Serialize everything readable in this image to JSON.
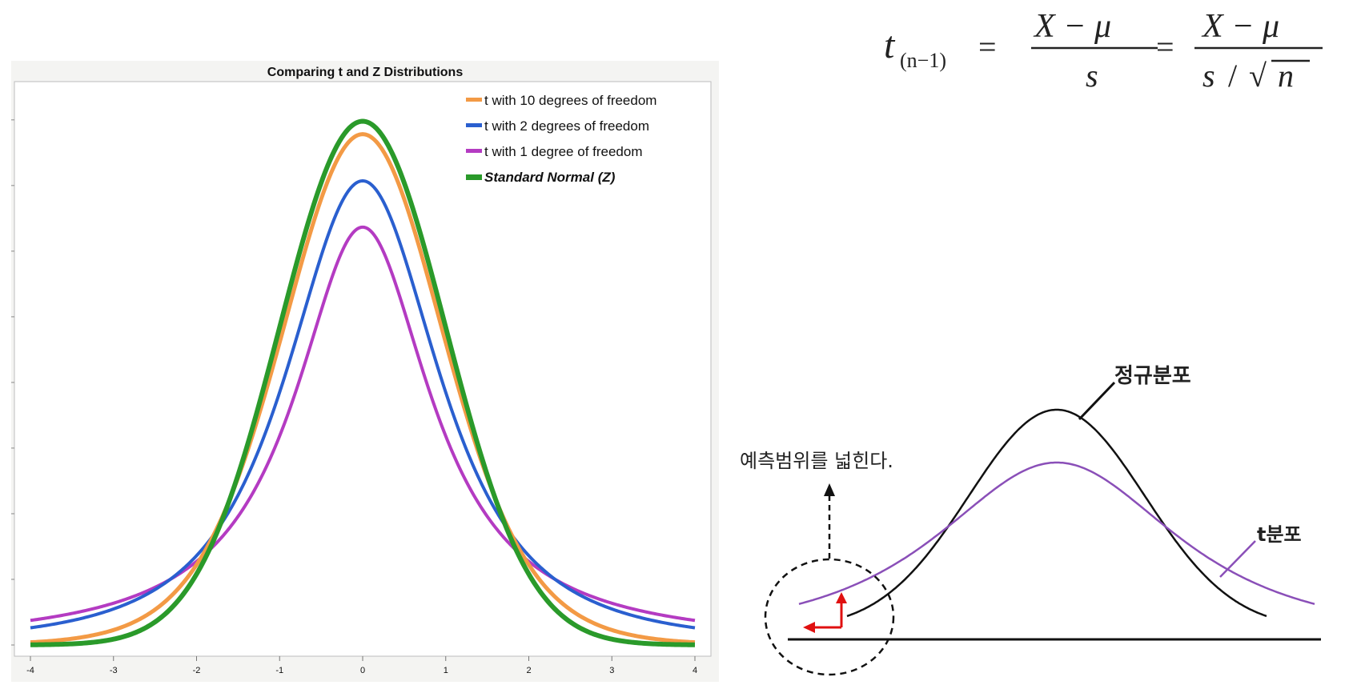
{
  "formula": {
    "lhs": "t",
    "lhs_sub": "(n−1)",
    "eq": "=",
    "num1": "X − μ",
    "den1": "s",
    "num2": "X − μ",
    "den2_s": "s",
    "den2_slash": "/",
    "den2_root": "√",
    "den2_n": "n"
  },
  "chart_data": {
    "type": "line",
    "title": "Comparing t and Z Distributions",
    "xlabel": "",
    "ylabel": "",
    "xlim": [
      -4,
      4
    ],
    "ylim": [
      0,
      0.42
    ],
    "x_ticks": [
      "-4",
      "-3",
      "-2",
      "-1",
      "0",
      "1",
      "2",
      "3",
      "4"
    ],
    "grid": false,
    "legend_position": "top-right",
    "series": [
      {
        "name": "t with 10 degrees of freedom",
        "color": "#f39a45",
        "distribution": "t",
        "df": 10,
        "x": [
          -4,
          -3,
          -2,
          -1,
          0,
          1,
          2,
          3,
          4
        ],
        "y": [
          0.0028,
          0.0114,
          0.0611,
          0.2304,
          0.3891,
          0.2304,
          0.0611,
          0.0114,
          0.0028
        ]
      },
      {
        "name": "t with 2 degrees of freedom",
        "color": "#2a5fcf",
        "distribution": "t",
        "df": 2,
        "x": [
          -4,
          -3,
          -2,
          -1,
          0,
          1,
          2,
          3,
          4
        ],
        "y": [
          0.0131,
          0.0274,
          0.068,
          0.1925,
          0.3536,
          0.1925,
          0.068,
          0.0274,
          0.0131
        ]
      },
      {
        "name": "t with 1 degree of freedom",
        "color": "#b43bc2",
        "distribution": "t",
        "df": 1,
        "x": [
          -4,
          -3,
          -2,
          -1,
          0,
          1,
          2,
          3,
          4
        ],
        "y": [
          0.0187,
          0.0318,
          0.0637,
          0.1592,
          0.3183,
          0.1592,
          0.0637,
          0.0318,
          0.0187
        ]
      },
      {
        "name": "Standard Normal (Z)",
        "color": "#2a9a2a",
        "distribution": "normal",
        "x": [
          -4,
          -3,
          -2,
          -1,
          0,
          1,
          2,
          3,
          4
        ],
        "y": [
          0.0001,
          0.0044,
          0.054,
          0.242,
          0.3989,
          0.242,
          0.054,
          0.0044,
          0.0001
        ]
      }
    ]
  },
  "diagram": {
    "normal_label": "정규분포",
    "t_label": "t분포",
    "annotation": "예측범위를 넓힌다.",
    "normal_color": "#111111",
    "t_color": "#8a4fb8",
    "arrow_color": "#e01010"
  }
}
